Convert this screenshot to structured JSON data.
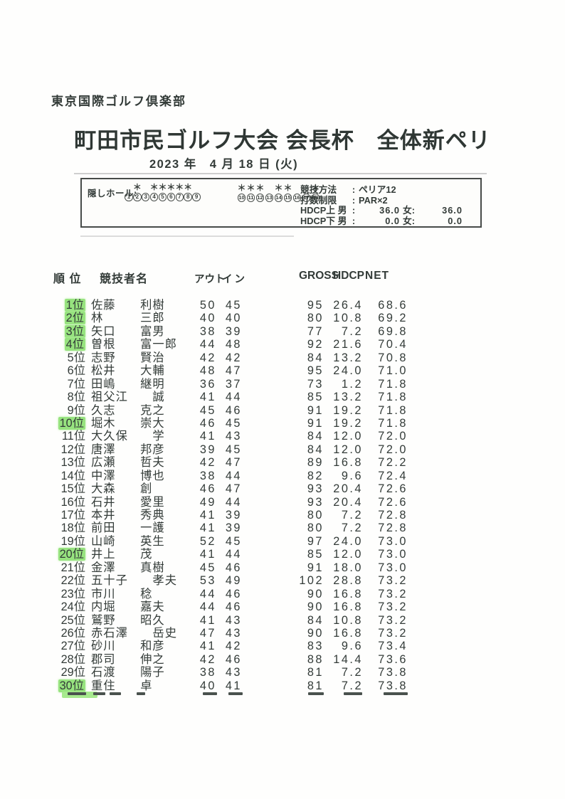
{
  "document": {
    "club_name": "東京国際ゴルフ倶楽部",
    "title": "町田市民ゴルフ大会 会長杯　全体新ペリ",
    "date": "2023 年　4 月 18 日 (火)"
  },
  "info_box": {
    "hidden_holes_label": "隠しホール:",
    "asterisk": "＊",
    "front_holes": [
      1,
      2,
      3,
      4,
      5,
      6,
      7,
      8,
      9
    ],
    "back_holes": [
      10,
      11,
      12,
      13,
      14,
      15,
      16,
      17,
      18
    ],
    "hidden_holes": [
      2,
      4,
      5,
      6,
      7,
      8,
      10,
      11,
      12,
      14,
      15,
      18
    ],
    "rules": [
      {
        "label": "競技方法",
        "value": "ペリア12"
      },
      {
        "label": "打数制限",
        "value": "PAR×2"
      },
      {
        "label": "HDCP上 男",
        "value": "36.0",
        "label2": "女:",
        "value2": "36.0"
      },
      {
        "label": "HDCP下 男",
        "value": "0.0",
        "label2": "女:",
        "value2": "0.0"
      }
    ]
  },
  "table": {
    "headers": {
      "rank": "順 位",
      "name": "競技者名",
      "out": "アウト",
      "in": "イン",
      "gross": "GROSS",
      "hdcp": "HDCP",
      "net": "NET"
    },
    "highlight_color": "#97e37f",
    "rows": [
      {
        "rank": "1位",
        "name": "佐藤　　利樹",
        "out": "50",
        "in": "45",
        "gross": "95",
        "hdcp": "26.4",
        "net": "68.6",
        "highlighted": true
      },
      {
        "rank": "2位",
        "name": "林　　　三郎",
        "out": "40",
        "in": "40",
        "gross": "80",
        "hdcp": "10.8",
        "net": "69.2",
        "highlighted": true
      },
      {
        "rank": "3位",
        "name": "矢口　　富男",
        "out": "38",
        "in": "39",
        "gross": "77",
        "hdcp": "7.2",
        "net": "69.8",
        "highlighted": true
      },
      {
        "rank": "4位",
        "name": "曽根　　富一郎",
        "out": "44",
        "in": "48",
        "gross": "92",
        "hdcp": "21.6",
        "net": "70.4",
        "highlighted": true
      },
      {
        "rank": "5位",
        "name": "志野　　賢治",
        "out": "42",
        "in": "42",
        "gross": "84",
        "hdcp": "13.2",
        "net": "70.8",
        "highlighted": false
      },
      {
        "rank": "6位",
        "name": "松井　　大輔",
        "out": "48",
        "in": "47",
        "gross": "95",
        "hdcp": "24.0",
        "net": "71.0",
        "highlighted": false
      },
      {
        "rank": "7位",
        "name": "田嶋　　継明",
        "out": "36",
        "in": "37",
        "gross": "73",
        "hdcp": "1.2",
        "net": "71.8",
        "highlighted": false
      },
      {
        "rank": "8位",
        "name": "祖父江　　誠",
        "out": "41",
        "in": "44",
        "gross": "85",
        "hdcp": "13.2",
        "net": "71.8",
        "highlighted": false
      },
      {
        "rank": "9位",
        "name": "久志　　克之",
        "out": "45",
        "in": "46",
        "gross": "91",
        "hdcp": "19.2",
        "net": "71.8",
        "highlighted": false
      },
      {
        "rank": "10位",
        "name": "堀木　　崇大",
        "out": "46",
        "in": "45",
        "gross": "91",
        "hdcp": "19.2",
        "net": "71.8",
        "highlighted": true
      },
      {
        "rank": "11位",
        "name": "大久保　　学",
        "out": "41",
        "in": "43",
        "gross": "84",
        "hdcp": "12.0",
        "net": "72.0",
        "highlighted": false
      },
      {
        "rank": "12位",
        "name": "唐澤　　邦彦",
        "out": "39",
        "in": "45",
        "gross": "84",
        "hdcp": "12.0",
        "net": "72.0",
        "highlighted": false
      },
      {
        "rank": "13位",
        "name": "広瀬　　哲夫",
        "out": "42",
        "in": "47",
        "gross": "89",
        "hdcp": "16.8",
        "net": "72.2",
        "highlighted": false
      },
      {
        "rank": "14位",
        "name": "中澤　　博也",
        "out": "38",
        "in": "44",
        "gross": "82",
        "hdcp": "9.6",
        "net": "72.4",
        "highlighted": false
      },
      {
        "rank": "15位",
        "name": "大森　　創",
        "out": "46",
        "in": "47",
        "gross": "93",
        "hdcp": "20.4",
        "net": "72.6",
        "highlighted": false
      },
      {
        "rank": "16位",
        "name": "石井　　愛里",
        "out": "49",
        "in": "44",
        "gross": "93",
        "hdcp": "20.4",
        "net": "72.6",
        "highlighted": false
      },
      {
        "rank": "17位",
        "name": "本井　　秀典",
        "out": "41",
        "in": "39",
        "gross": "80",
        "hdcp": "7.2",
        "net": "72.8",
        "highlighted": false
      },
      {
        "rank": "18位",
        "name": "前田　　一護",
        "out": "41",
        "in": "39",
        "gross": "80",
        "hdcp": "7.2",
        "net": "72.8",
        "highlighted": false
      },
      {
        "rank": "19位",
        "name": "山崎　　英生",
        "out": "52",
        "in": "45",
        "gross": "97",
        "hdcp": "24.0",
        "net": "73.0",
        "highlighted": false
      },
      {
        "rank": "20位",
        "name": "井上　　茂",
        "out": "41",
        "in": "44",
        "gross": "85",
        "hdcp": "12.0",
        "net": "73.0",
        "highlighted": true
      },
      {
        "rank": "21位",
        "name": "金澤　　真樹",
        "out": "45",
        "in": "46",
        "gross": "91",
        "hdcp": "18.0",
        "net": "73.0",
        "highlighted": false
      },
      {
        "rank": "22位",
        "name": "五十子　　孝夫",
        "out": "53",
        "in": "49",
        "gross": "102",
        "hdcp": "28.8",
        "net": "73.2",
        "highlighted": false
      },
      {
        "rank": "23位",
        "name": "市川　　稔",
        "out": "44",
        "in": "46",
        "gross": "90",
        "hdcp": "16.8",
        "net": "73.2",
        "highlighted": false
      },
      {
        "rank": "24位",
        "name": "内堀　　嘉夫",
        "out": "44",
        "in": "46",
        "gross": "90",
        "hdcp": "16.8",
        "net": "73.2",
        "highlighted": false
      },
      {
        "rank": "25位",
        "name": "鷲野　　昭久",
        "out": "41",
        "in": "43",
        "gross": "84",
        "hdcp": "10.8",
        "net": "73.2",
        "highlighted": false
      },
      {
        "rank": "26位",
        "name": "赤石澤　　岳史",
        "out": "47",
        "in": "43",
        "gross": "90",
        "hdcp": "16.8",
        "net": "73.2",
        "highlighted": false
      },
      {
        "rank": "27位",
        "name": "砂川　　和彦",
        "out": "41",
        "in": "42",
        "gross": "83",
        "hdcp": "9.6",
        "net": "73.4",
        "highlighted": false
      },
      {
        "rank": "28位",
        "name": "郡司　　伸之",
        "out": "42",
        "in": "46",
        "gross": "88",
        "hdcp": "14.4",
        "net": "73.6",
        "highlighted": false
      },
      {
        "rank": "29位",
        "name": "石渡　　陽子",
        "out": "38",
        "in": "43",
        "gross": "81",
        "hdcp": "7.2",
        "net": "73.8",
        "highlighted": false
      },
      {
        "rank": "30位",
        "name": "重住　　卓",
        "out": "40",
        "in": "41",
        "gross": "81",
        "hdcp": "7.2",
        "net": "73.8",
        "highlighted": true
      }
    ]
  }
}
